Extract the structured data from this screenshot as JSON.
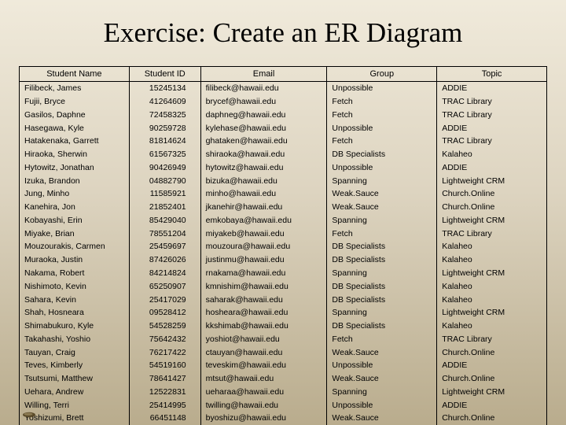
{
  "title": "Exercise: Create an ER Diagram",
  "table": {
    "columns": [
      "Student Name",
      "Student ID",
      "Email",
      "Group",
      "Topic"
    ],
    "rows": [
      [
        "Filibeck, James",
        "15245134",
        "filibeck@hawaii.edu",
        "Unpossible",
        "ADDIE"
      ],
      [
        "Fujii, Bryce",
        "41264609",
        "brycef@hawaii.edu",
        "Fetch",
        "TRAC Library"
      ],
      [
        "Gasilos, Daphne",
        "72458325",
        "daphneg@hawaii.edu",
        "Fetch",
        "TRAC Library"
      ],
      [
        "Hasegawa, Kyle",
        "90259728",
        "kylehase@hawaii.edu",
        "Unpossible",
        "ADDIE"
      ],
      [
        "Hatakenaka, Garrett",
        "81814624",
        "ghataken@hawaii.edu",
        "Fetch",
        "TRAC Library"
      ],
      [
        "Hiraoka, Sherwin",
        "61567325",
        "shiraoka@hawaii.edu",
        "DB Specialists",
        "Kalaheo"
      ],
      [
        "Hytowitz, Jonathan",
        "90426949",
        "hytowitz@hawaii.edu",
        "Unpossible",
        "ADDIE"
      ],
      [
        "Izuka, Brandon",
        "04882790",
        "bizuka@hawaii.edu",
        "Spanning",
        "Lightweight CRM"
      ],
      [
        "Jung, Minho",
        "11585921",
        "minho@hawaii.edu",
        "Weak.Sauce",
        "Church.Online"
      ],
      [
        "Kanehira, Jon",
        "21852401",
        "jkanehir@hawaii.edu",
        "Weak.Sauce",
        "Church.Online"
      ],
      [
        "Kobayashi, Erin",
        "85429040",
        "emkobaya@hawaii.edu",
        "Spanning",
        "Lightweight CRM"
      ],
      [
        "Miyake, Brian",
        "78551204",
        "miyakeb@hawaii.edu",
        "Fetch",
        "TRAC Library"
      ],
      [
        "Mouzourakis, Carmen",
        "25459697",
        "mouzoura@hawaii.edu",
        "DB Specialists",
        "Kalaheo"
      ],
      [
        "Muraoka, Justin",
        "87426026",
        "justinmu@hawaii.edu",
        "DB Specialists",
        "Kalaheo"
      ],
      [
        "Nakama, Robert",
        "84214824",
        "rnakama@hawaii.edu",
        "Spanning",
        "Lightweight CRM"
      ],
      [
        "Nishimoto, Kevin",
        "65250907",
        "kmnishim@hawaii.edu",
        "DB Specialists",
        "Kalaheo"
      ],
      [
        "Sahara, Kevin",
        "25417029",
        "saharak@hawaii.edu",
        "DB Specialists",
        "Kalaheo"
      ],
      [
        "Shah, Hosneara",
        "09528412",
        "hosheara@hawaii.edu",
        "Spanning",
        "Lightweight CRM"
      ],
      [
        "Shimabukuro, Kyle",
        "54528259",
        "kkshimab@hawaii.edu",
        "DB Specialists",
        "Kalaheo"
      ],
      [
        "Takahashi, Yoshio",
        "75642432",
        "yoshiot@hawaii.edu",
        "Fetch",
        "TRAC Library"
      ],
      [
        "Tauyan, Craig",
        "76217422",
        "ctauyan@hawaii.edu",
        "Weak.Sauce",
        "Church.Online"
      ],
      [
        "Teves, Kimberly",
        "54519160",
        "teveskim@hawaii.edu",
        "Unpossible",
        "ADDIE"
      ],
      [
        "Tsutsumi, Matthew",
        "78641427",
        "mtsut@hawaii.edu",
        "Weak.Sauce",
        "Church.Online"
      ],
      [
        "Uehara, Andrew",
        "12522831",
        "ueharaa@hawaii.edu",
        "Spanning",
        "Lightweight CRM"
      ],
      [
        "Willing, Terri",
        "25414995",
        "twilling@hawaii.edu",
        "Unpossible",
        "ADDIE"
      ],
      [
        "Yoshizumi, Brett",
        "66451148",
        "byoshizu@hawaii.edu",
        "Weak.Sauce",
        "Church.Online"
      ]
    ]
  },
  "colors": {
    "border": "#000000",
    "text": "#000000"
  }
}
